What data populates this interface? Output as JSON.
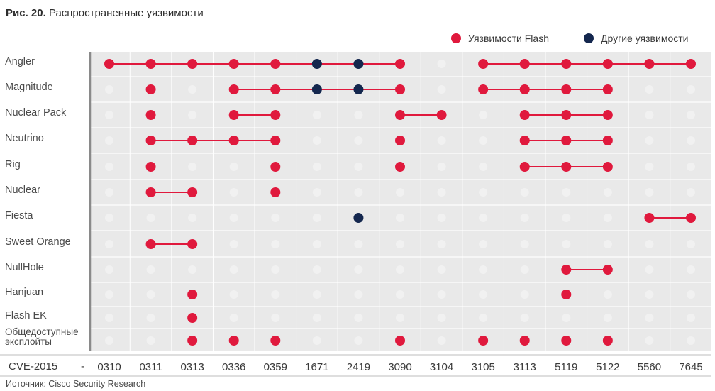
{
  "figure": {
    "title_prefix": "Рис. 20.",
    "title_text": "Распространенные уязвимости",
    "source": "Источник: Cisco Security Research",
    "axis_prefix": "CVE-2015",
    "axis_dash": "-"
  },
  "legend": {
    "flash_label": "Уязвимости Flash",
    "other_label": "Другие уязвимости"
  },
  "colors": {
    "flash": "#e0193d",
    "other": "#14274e",
    "empty": "#f1f1f1",
    "grid": "#ffffff",
    "panel": "#e9e9e9"
  },
  "chart_data": {
    "type": "dot-matrix",
    "title": "Распространенные уязвимости",
    "categories": [
      "0310",
      "0311",
      "0313",
      "0336",
      "0359",
      "1671",
      "2419",
      "3090",
      "3104",
      "3105",
      "3113",
      "5119",
      "5122",
      "5560",
      "7645"
    ],
    "rows": [
      {
        "name": "Angler",
        "values": [
          "F",
          "F",
          "F",
          "F",
          "F",
          "O",
          "O",
          "F",
          "-",
          "F",
          "F",
          "F",
          "F",
          "F",
          "F"
        ],
        "links": [
          [
            0,
            7
          ],
          [
            9,
            14
          ]
        ]
      },
      {
        "name": "Magnitude",
        "values": [
          "-",
          "F",
          "-",
          "F",
          "F",
          "O",
          "O",
          "F",
          "-",
          "F",
          "F",
          "F",
          "F",
          "-",
          "-"
        ],
        "links": [
          [
            3,
            7
          ],
          [
            9,
            12
          ]
        ]
      },
      {
        "name": "Nuclear Pack",
        "values": [
          "-",
          "F",
          "-",
          "F",
          "F",
          "-",
          "-",
          "F",
          "F",
          "-",
          "F",
          "F",
          "F",
          "-",
          "-"
        ],
        "links": [
          [
            3,
            4
          ],
          [
            7,
            8
          ],
          [
            10,
            12
          ]
        ]
      },
      {
        "name": "Neutrino",
        "values": [
          "-",
          "F",
          "F",
          "F",
          "F",
          "-",
          "-",
          "F",
          "-",
          "-",
          "F",
          "F",
          "F",
          "-",
          "-"
        ],
        "links": [
          [
            1,
            4
          ],
          [
            10,
            12
          ]
        ]
      },
      {
        "name": "Rig",
        "values": [
          "-",
          "F",
          "-",
          "-",
          "F",
          "-",
          "-",
          "F",
          "-",
          "-",
          "F",
          "F",
          "F",
          "-",
          "-"
        ],
        "links": [
          [
            10,
            12
          ]
        ]
      },
      {
        "name": "Nuclear",
        "values": [
          "-",
          "F",
          "F",
          "-",
          "F",
          "-",
          "-",
          "-",
          "-",
          "-",
          "-",
          "-",
          "-",
          "-",
          "-"
        ],
        "links": [
          [
            1,
            2
          ]
        ]
      },
      {
        "name": "Fiesta",
        "values": [
          "-",
          "-",
          "-",
          "-",
          "-",
          "-",
          "O",
          "-",
          "-",
          "-",
          "-",
          "-",
          "-",
          "F",
          "F"
        ],
        "links": [
          [
            13,
            14
          ]
        ]
      },
      {
        "name": "Sweet Orange",
        "values": [
          "-",
          "F",
          "F",
          "-",
          "-",
          "-",
          "-",
          "-",
          "-",
          "-",
          "-",
          "-",
          "-",
          "-",
          "-"
        ],
        "links": [
          [
            1,
            2
          ]
        ]
      },
      {
        "name": "NullHole",
        "values": [
          "-",
          "-",
          "-",
          "-",
          "-",
          "-",
          "-",
          "-",
          "-",
          "-",
          "-",
          "F",
          "F",
          "-",
          "-"
        ],
        "links": [
          [
            11,
            12
          ]
        ]
      },
      {
        "name": "Hanjuan",
        "values": [
          "-",
          "-",
          "F",
          "-",
          "-",
          "-",
          "-",
          "-",
          "-",
          "-",
          "-",
          "F",
          "-",
          "-",
          "-"
        ],
        "links": []
      },
      {
        "name": "Flash EK",
        "values": [
          "-",
          "-",
          "F",
          "-",
          "-",
          "-",
          "-",
          "-",
          "-",
          "-",
          "-",
          "-",
          "-",
          "-",
          "-"
        ],
        "links": []
      },
      {
        "name": "Общедоступные эксплойты",
        "label_lines": [
          "Общедоступные",
          "эксплойты"
        ],
        "values": [
          "-",
          "-",
          "F",
          "F",
          "F",
          "-",
          "-",
          "F",
          "-",
          "F",
          "F",
          "F",
          "F",
          "-",
          "-"
        ],
        "links": []
      }
    ],
    "value_legend": {
      "F": "Уязвимости Flash",
      "O": "Другие уязвимости",
      "-": "none"
    }
  }
}
